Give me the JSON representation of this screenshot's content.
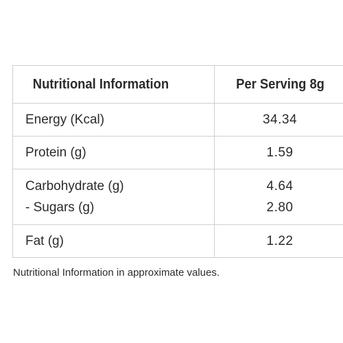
{
  "table": {
    "header": {
      "nutrient": "Nutritional Information",
      "value": "Per Serving 8g"
    },
    "rows": {
      "energy": {
        "label": "Energy (Kcal)",
        "value": "34.34"
      },
      "protein": {
        "label": "Protein (g)",
        "value": "1.59"
      },
      "carbohydrate": {
        "label": "Carbohydrate (g)",
        "value": "4.64",
        "sub_label": "- Sugars (g)",
        "sub_value": "2.80"
      },
      "fat": {
        "label": "Fat (g)",
        "value": "1.22"
      }
    }
  },
  "footnote": "Nutritional Information in approximate values."
}
